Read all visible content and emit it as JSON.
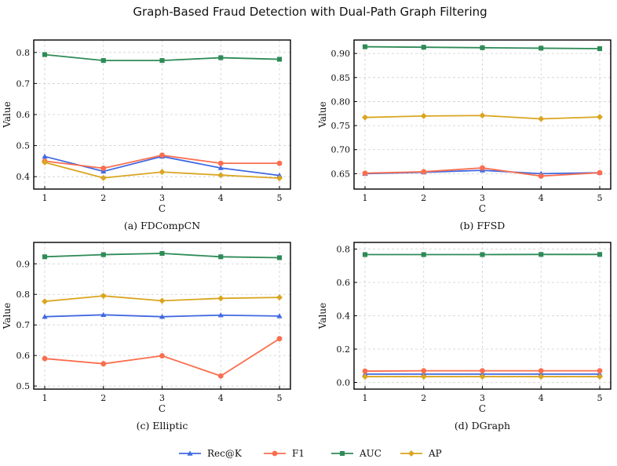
{
  "title": "Graph-Based Fraud Detection with Dual-Path Graph Filtering",
  "legend": [
    {
      "name": "Rec@K",
      "color": "#4169e1",
      "marker": "triangle"
    },
    {
      "name": "F1",
      "color": "#fa6e4f",
      "marker": "circle"
    },
    {
      "name": "AUC",
      "color": "#2e8b57",
      "marker": "square"
    },
    {
      "name": "AP",
      "color": "#daa520",
      "marker": "diamond"
    }
  ],
  "chart_data": [
    {
      "type": "line",
      "caption": "(a) FDCompCN",
      "xlabel": "C",
      "ylabel": "Value",
      "x": [
        1,
        2,
        3,
        4,
        5
      ],
      "ylim": [
        0.36,
        0.84
      ],
      "yticks": [
        0.4,
        0.5,
        0.6,
        0.7,
        0.8
      ],
      "ytick_labels": [
        "0.4",
        "0.5",
        "0.6",
        "0.7",
        "0.8"
      ],
      "grid": true,
      "series": [
        {
          "name": "Rec@K",
          "values": [
            0.465,
            0.417,
            0.465,
            0.428,
            0.404
          ]
        },
        {
          "name": "F1",
          "values": [
            0.45,
            0.427,
            0.469,
            0.443,
            0.443
          ]
        },
        {
          "name": "AUC",
          "values": [
            0.793,
            0.774,
            0.774,
            0.783,
            0.778
          ]
        },
        {
          "name": "AP",
          "values": [
            0.446,
            0.396,
            0.415,
            0.405,
            0.395
          ]
        }
      ]
    },
    {
      "type": "line",
      "caption": "(b) FFSD",
      "xlabel": "C",
      "ylabel": "Value",
      "x": [
        1,
        2,
        3,
        4,
        5
      ],
      "ylim": [
        0.618,
        0.928
      ],
      "yticks": [
        0.65,
        0.7,
        0.75,
        0.8,
        0.85,
        0.9
      ],
      "ytick_labels": [
        "0.65",
        "0.70",
        "0.75",
        "0.80",
        "0.85",
        "0.90"
      ],
      "grid": true,
      "series": [
        {
          "name": "Rec@K",
          "values": [
            0.65,
            0.653,
            0.657,
            0.65,
            0.652
          ]
        },
        {
          "name": "F1",
          "values": [
            0.651,
            0.654,
            0.662,
            0.645,
            0.652
          ]
        },
        {
          "name": "AUC",
          "values": [
            0.914,
            0.913,
            0.912,
            0.911,
            0.91
          ]
        },
        {
          "name": "AP",
          "values": [
            0.767,
            0.77,
            0.771,
            0.764,
            0.768
          ]
        }
      ]
    },
    {
      "type": "line",
      "caption": "(c) Elliptic",
      "xlabel": "C",
      "ylabel": "Value",
      "x": [
        1,
        2,
        3,
        4,
        5
      ],
      "ylim": [
        0.49,
        0.97
      ],
      "yticks": [
        0.5,
        0.6,
        0.7,
        0.8,
        0.9
      ],
      "ytick_labels": [
        "0.5",
        "0.6",
        "0.7",
        "0.8",
        "0.9"
      ],
      "grid": true,
      "series": [
        {
          "name": "Rec@K",
          "values": [
            0.727,
            0.733,
            0.727,
            0.732,
            0.729
          ]
        },
        {
          "name": "F1",
          "values": [
            0.59,
            0.573,
            0.599,
            0.533,
            0.655
          ]
        },
        {
          "name": "AUC",
          "values": [
            0.923,
            0.93,
            0.934,
            0.923,
            0.92
          ]
        },
        {
          "name": "AP",
          "values": [
            0.777,
            0.795,
            0.779,
            0.787,
            0.79
          ]
        }
      ]
    },
    {
      "type": "line",
      "caption": "(d) DGraph",
      "xlabel": "C",
      "ylabel": "Value",
      "x": [
        1,
        2,
        3,
        4,
        5
      ],
      "ylim": [
        -0.04,
        0.84
      ],
      "yticks": [
        0.0,
        0.2,
        0.4,
        0.6,
        0.8
      ],
      "ytick_labels": [
        "0.0",
        "0.2",
        "0.4",
        "0.6",
        "0.8"
      ],
      "grid": true,
      "series": [
        {
          "name": "Rec@K",
          "values": [
            0.05,
            0.05,
            0.05,
            0.05,
            0.05
          ]
        },
        {
          "name": "F1",
          "values": [
            0.068,
            0.07,
            0.07,
            0.07,
            0.07
          ]
        },
        {
          "name": "AUC",
          "values": [
            0.767,
            0.767,
            0.767,
            0.768,
            0.768
          ]
        },
        {
          "name": "AP",
          "values": [
            0.035,
            0.035,
            0.035,
            0.035,
            0.035
          ]
        }
      ]
    }
  ]
}
